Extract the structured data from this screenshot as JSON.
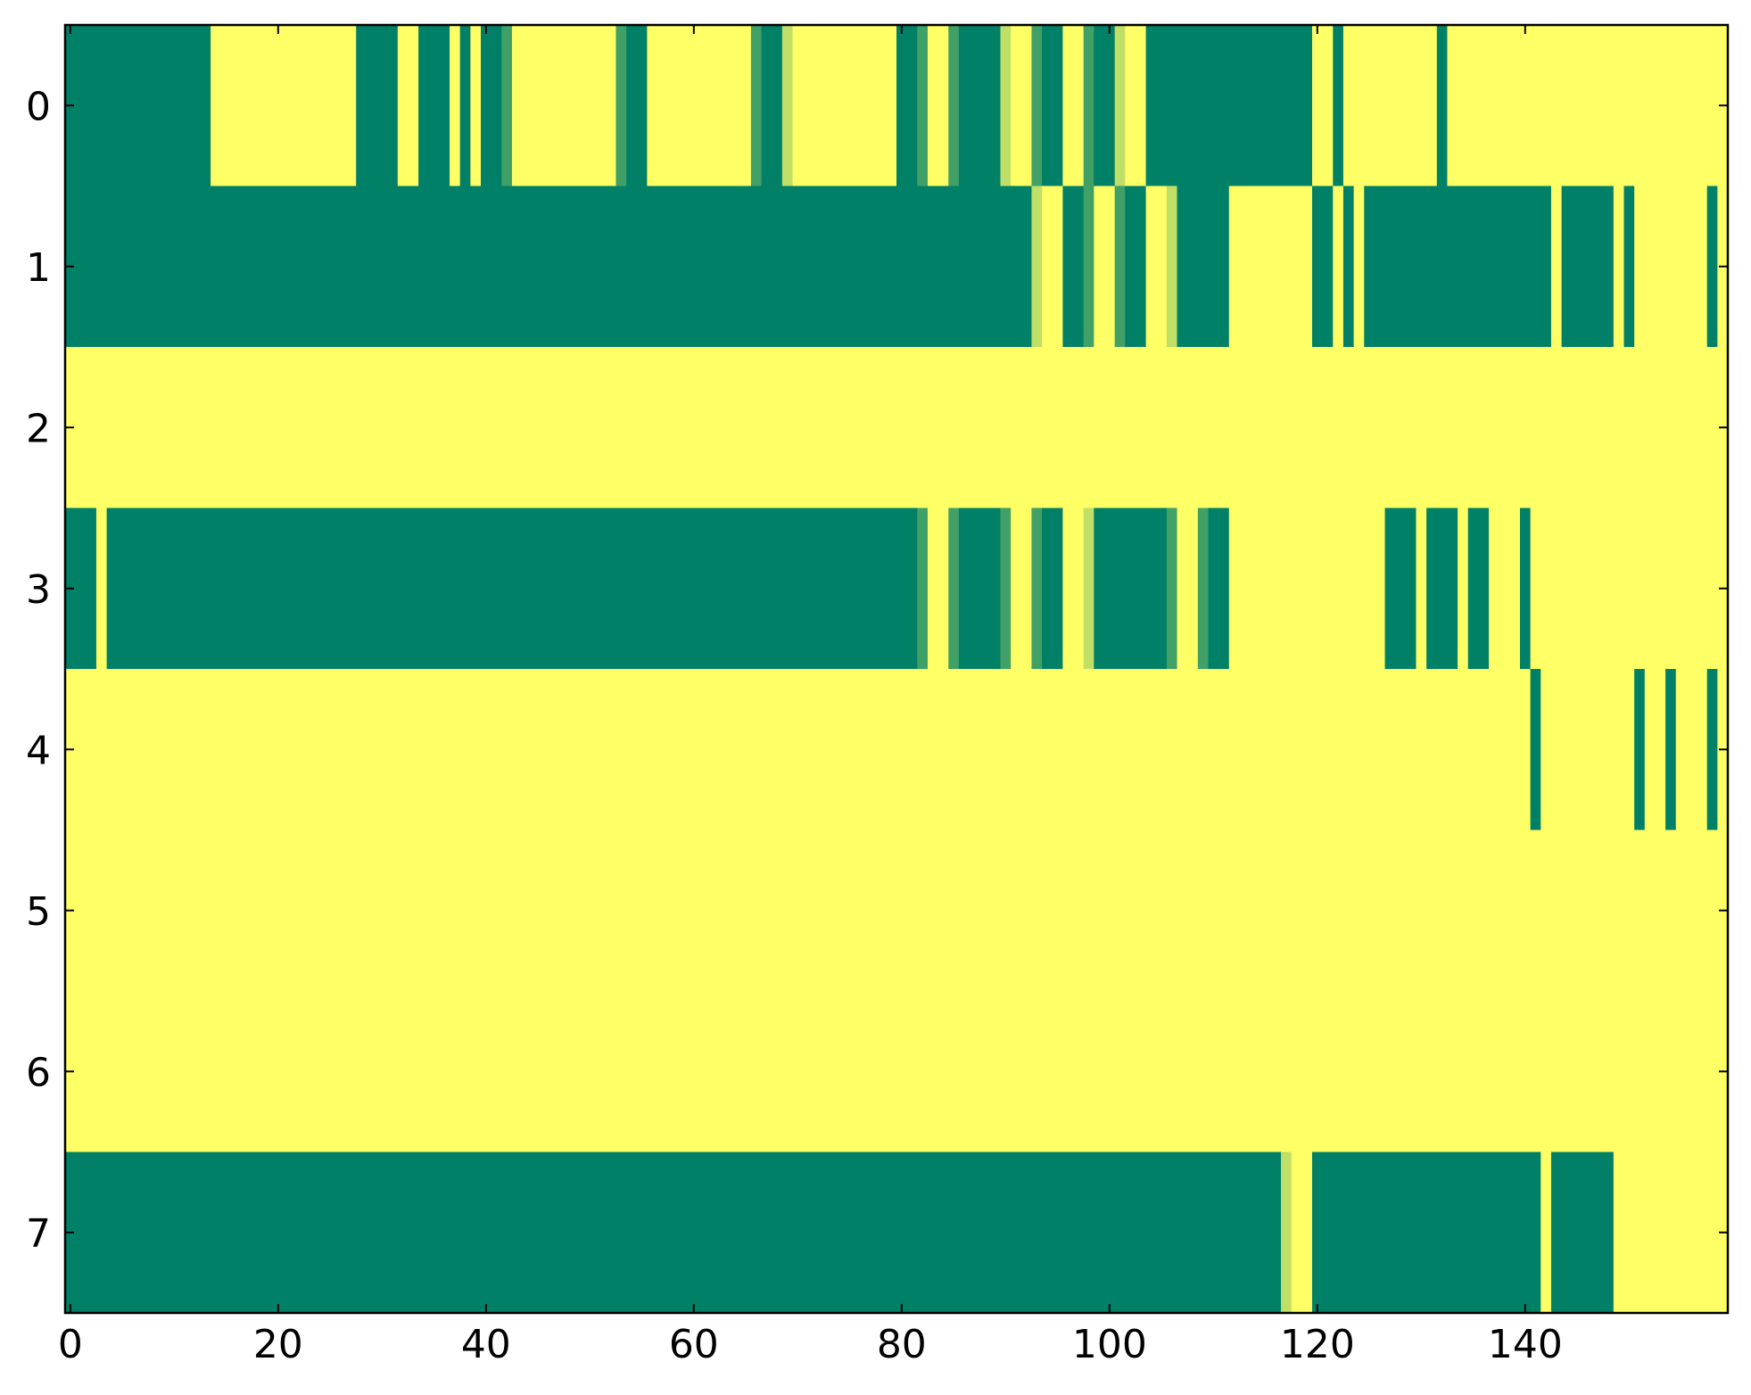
{
  "chart_data": {
    "type": "heatmap",
    "xlim": [
      -0.5,
      159.5
    ],
    "ylim": [
      7.5,
      -0.5
    ],
    "xticks": [
      0,
      20,
      40,
      60,
      80,
      100,
      120,
      140
    ],
    "yticks": [
      0,
      1,
      2,
      3,
      4,
      5,
      6,
      7
    ],
    "vlim": [
      0,
      1
    ],
    "colormap": {
      "low": "#008066",
      "high": "#ffff66"
    },
    "z": [
      [
        0,
        0,
        0,
        0,
        0,
        0,
        0,
        0,
        0,
        0,
        0,
        0,
        0,
        0,
        1,
        1,
        1,
        1,
        1,
        1,
        1,
        1,
        1,
        1,
        1,
        1,
        1,
        1,
        0,
        0,
        0,
        0,
        1,
        1,
        0,
        0,
        0,
        1,
        0,
        1,
        0,
        0,
        0.25,
        1,
        1,
        1,
        1,
        1,
        1,
        1,
        1,
        1,
        1,
        0.25,
        0,
        0,
        1,
        1,
        1,
        1,
        1,
        1,
        1,
        1,
        1,
        1,
        0.25,
        0,
        0,
        0.75,
        1,
        1,
        1,
        1,
        1,
        1,
        1,
        1,
        1,
        1,
        0,
        0,
        0.25,
        1,
        1,
        0.25,
        0,
        0,
        0,
        0,
        0.75,
        1,
        1,
        0.25,
        0,
        0,
        1,
        1,
        0.25,
        0,
        0,
        0.75,
        1,
        1,
        0,
        0,
        0,
        0,
        0,
        0,
        0,
        0,
        0,
        0,
        0,
        0,
        0,
        0,
        0,
        0,
        1,
        1,
        0,
        1,
        1,
        1,
        1,
        1,
        1,
        1,
        1,
        1,
        0,
        1,
        1,
        1,
        1,
        1,
        1,
        1,
        1,
        1,
        1,
        1,
        1,
        1,
        1,
        1,
        1,
        1,
        1,
        1,
        1,
        1,
        1,
        1,
        1,
        1,
        1,
        1
      ],
      [
        0,
        0,
        0,
        0,
        0,
        0,
        0,
        0,
        0,
        0,
        0,
        0,
        0,
        0,
        0,
        0,
        0,
        0,
        0,
        0,
        0,
        0,
        0,
        0,
        0,
        0,
        0,
        0,
        0,
        0,
        0,
        0,
        0,
        0,
        0,
        0,
        0,
        0,
        0,
        0,
        0,
        0,
        0,
        0,
        0,
        0,
        0,
        0,
        0,
        0,
        0,
        0,
        0,
        0,
        0,
        0,
        0,
        0,
        0,
        0,
        0,
        0,
        0,
        0,
        0,
        0,
        0,
        0,
        0,
        0,
        0,
        0,
        0,
        0,
        0,
        0,
        0,
        0,
        0,
        0,
        0,
        0,
        0,
        0,
        0,
        0,
        0,
        0,
        0,
        0,
        0,
        0,
        0,
        0.75,
        1,
        1,
        0,
        0,
        0.25,
        1,
        1,
        0.25,
        0,
        0,
        1,
        1,
        0.75,
        0,
        0,
        0,
        0,
        0,
        1,
        1,
        1,
        1,
        1,
        1,
        1,
        1,
        0,
        0,
        1,
        0,
        1,
        0,
        0,
        0,
        0,
        0,
        0,
        0,
        0,
        0,
        0,
        0,
        0,
        0,
        0,
        0,
        0,
        0,
        0,
        1,
        0,
        0,
        0,
        0,
        0,
        1,
        0,
        1,
        1,
        1,
        1,
        1,
        1,
        1,
        0,
        1
      ],
      [
        1,
        1,
        1,
        1,
        1,
        1,
        1,
        1,
        1,
        1,
        1,
        1,
        1,
        1,
        1,
        1,
        1,
        1,
        1,
        1,
        1,
        1,
        1,
        1,
        1,
        1,
        1,
        1,
        1,
        1,
        1,
        1,
        1,
        1,
        1,
        1,
        1,
        1,
        1,
        1,
        1,
        1,
        1,
        1,
        1,
        1,
        1,
        1,
        1,
        1,
        1,
        1,
        1,
        1,
        1,
        1,
        1,
        1,
        1,
        1,
        1,
        1,
        1,
        1,
        1,
        1,
        1,
        1,
        1,
        1,
        1,
        1,
        1,
        1,
        1,
        1,
        1,
        1,
        1,
        1,
        1,
        1,
        1,
        1,
        1,
        1,
        1,
        1,
        1,
        1,
        1,
        1,
        1,
        1,
        1,
        1,
        1,
        1,
        1,
        1,
        1,
        1,
        1,
        1,
        1,
        1,
        1,
        1,
        1,
        1,
        1,
        1,
        1,
        1,
        1,
        1,
        1,
        1,
        1,
        1,
        1,
        1,
        1,
        1,
        1,
        1,
        1,
        1,
        1,
        1,
        1,
        1,
        1,
        1,
        1,
        1,
        1,
        1,
        1,
        1,
        1,
        1,
        1,
        1,
        1,
        1,
        1,
        1,
        1,
        1,
        1,
        1,
        1,
        1,
        1,
        1,
        1,
        1,
        1,
        1
      ],
      [
        0,
        0,
        0,
        1,
        0,
        0,
        0,
        0,
        0,
        0,
        0,
        0,
        0,
        0,
        0,
        0,
        0,
        0,
        0,
        0,
        0,
        0,
        0,
        0,
        0,
        0,
        0,
        0,
        0,
        0,
        0,
        0,
        0,
        0,
        0,
        0,
        0,
        0,
        0,
        0,
        0,
        0,
        0,
        0,
        0,
        0,
        0,
        0,
        0,
        0,
        0,
        0,
        0,
        0,
        0,
        0,
        0,
        0,
        0,
        0,
        0,
        0,
        0,
        0,
        0,
        0,
        0,
        0,
        0,
        0,
        0,
        0,
        0,
        0,
        0,
        0,
        0,
        0,
        0,
        0,
        0,
        0,
        0.25,
        1,
        1,
        0.25,
        0,
        0,
        0,
        0,
        0.25,
        1,
        1,
        0.25,
        0,
        0,
        1,
        1,
        0.75,
        0,
        0,
        0,
        0,
        0,
        0,
        0,
        0.25,
        1,
        1,
        0.25,
        0,
        0,
        1,
        1,
        1,
        1,
        1,
        1,
        1,
        1,
        1,
        1,
        1,
        1,
        1,
        1,
        1,
        0,
        0,
        0,
        1,
        0,
        0,
        0,
        1,
        0,
        0,
        1,
        1,
        1,
        0,
        1,
        1,
        1,
        1,
        1,
        1,
        1,
        1,
        1,
        1,
        1,
        1,
        1,
        1,
        1,
        1,
        1,
        1,
        1
      ],
      [
        1,
        1,
        1,
        1,
        1,
        1,
        1,
        1,
        1,
        1,
        1,
        1,
        1,
        1,
        1,
        1,
        1,
        1,
        1,
        1,
        1,
        1,
        1,
        1,
        1,
        1,
        1,
        1,
        1,
        1,
        1,
        1,
        1,
        1,
        1,
        1,
        1,
        1,
        1,
        1,
        1,
        1,
        1,
        1,
        1,
        1,
        1,
        1,
        1,
        1,
        1,
        1,
        1,
        1,
        1,
        1,
        1,
        1,
        1,
        1,
        1,
        1,
        1,
        1,
        1,
        1,
        1,
        1,
        1,
        1,
        1,
        1,
        1,
        1,
        1,
        1,
        1,
        1,
        1,
        1,
        1,
        1,
        1,
        1,
        1,
        1,
        1,
        1,
        1,
        1,
        1,
        1,
        1,
        1,
        1,
        1,
        1,
        1,
        1,
        1,
        1,
        1,
        1,
        1,
        1,
        1,
        1,
        1,
        1,
        1,
        1,
        1,
        1,
        1,
        1,
        1,
        1,
        1,
        1,
        1,
        1,
        1,
        1,
        1,
        1,
        1,
        1,
        1,
        1,
        1,
        1,
        1,
        1,
        1,
        1,
        1,
        1,
        1,
        1,
        1,
        1,
        0,
        1,
        1,
        1,
        1,
        1,
        1,
        1,
        1,
        1,
        0,
        1,
        1,
        0,
        1,
        1,
        1,
        0,
        1
      ],
      [
        1,
        1,
        1,
        1,
        1,
        1,
        1,
        1,
        1,
        1,
        1,
        1,
        1,
        1,
        1,
        1,
        1,
        1,
        1,
        1,
        1,
        1,
        1,
        1,
        1,
        1,
        1,
        1,
        1,
        1,
        1,
        1,
        1,
        1,
        1,
        1,
        1,
        1,
        1,
        1,
        1,
        1,
        1,
        1,
        1,
        1,
        1,
        1,
        1,
        1,
        1,
        1,
        1,
        1,
        1,
        1,
        1,
        1,
        1,
        1,
        1,
        1,
        1,
        1,
        1,
        1,
        1,
        1,
        1,
        1,
        1,
        1,
        1,
        1,
        1,
        1,
        1,
        1,
        1,
        1,
        1,
        1,
        1,
        1,
        1,
        1,
        1,
        1,
        1,
        1,
        1,
        1,
        1,
        1,
        1,
        1,
        1,
        1,
        1,
        1,
        1,
        1,
        1,
        1,
        1,
        1,
        1,
        1,
        1,
        1,
        1,
        1,
        1,
        1,
        1,
        1,
        1,
        1,
        1,
        1,
        1,
        1,
        1,
        1,
        1,
        1,
        1,
        1,
        1,
        1,
        1,
        1,
        1,
        1,
        1,
        1,
        1,
        1,
        1,
        1,
        1,
        1,
        1,
        1,
        1,
        1,
        1,
        1,
        1,
        1,
        1,
        1,
        1,
        1,
        1,
        1,
        1,
        1,
        1,
        1
      ],
      [
        1,
        1,
        1,
        1,
        1,
        1,
        1,
        1,
        1,
        1,
        1,
        1,
        1,
        1,
        1,
        1,
        1,
        1,
        1,
        1,
        1,
        1,
        1,
        1,
        1,
        1,
        1,
        1,
        1,
        1,
        1,
        1,
        1,
        1,
        1,
        1,
        1,
        1,
        1,
        1,
        1,
        1,
        1,
        1,
        1,
        1,
        1,
        1,
        1,
        1,
        1,
        1,
        1,
        1,
        1,
        1,
        1,
        1,
        1,
        1,
        1,
        1,
        1,
        1,
        1,
        1,
        1,
        1,
        1,
        1,
        1,
        1,
        1,
        1,
        1,
        1,
        1,
        1,
        1,
        1,
        1,
        1,
        1,
        1,
        1,
        1,
        1,
        1,
        1,
        1,
        1,
        1,
        1,
        1,
        1,
        1,
        1,
        1,
        1,
        1,
        1,
        1,
        1,
        1,
        1,
        1,
        1,
        1,
        1,
        1,
        1,
        1,
        1,
        1,
        1,
        1,
        1,
        1,
        1,
        1,
        1,
        1,
        1,
        1,
        1,
        1,
        1,
        1,
        1,
        1,
        1,
        1,
        1,
        1,
        1,
        1,
        1,
        1,
        1,
        1,
        1,
        1,
        1,
        1,
        1,
        1,
        1,
        1,
        1,
        1,
        1,
        1,
        1,
        1,
        1,
        1,
        1,
        1,
        1,
        1
      ],
      [
        0,
        0,
        0,
        0,
        0,
        0,
        0,
        0,
        0,
        0,
        0,
        0,
        0,
        0,
        0,
        0,
        0,
        0,
        0,
        0,
        0,
        0,
        0,
        0,
        0,
        0,
        0,
        0,
        0,
        0,
        0,
        0,
        0,
        0,
        0,
        0,
        0,
        0,
        0,
        0,
        0,
        0,
        0,
        0,
        0,
        0,
        0,
        0,
        0,
        0,
        0,
        0,
        0,
        0,
        0,
        0,
        0,
        0,
        0,
        0,
        0,
        0,
        0,
        0,
        0,
        0,
        0,
        0,
        0,
        0,
        0,
        0,
        0,
        0,
        0,
        0,
        0,
        0,
        0,
        0,
        0,
        0,
        0,
        0,
        0,
        0,
        0,
        0,
        0,
        0,
        0,
        0,
        0,
        0,
        0,
        0,
        0,
        0,
        0,
        0,
        0,
        0,
        0,
        0,
        0,
        0,
        0,
        0,
        0,
        0,
        0,
        0,
        0,
        0,
        0,
        0,
        0,
        0.75,
        1,
        1,
        0,
        0,
        0,
        0,
        0,
        0,
        0,
        0,
        0,
        0,
        0,
        0,
        0,
        0,
        0,
        0,
        0,
        0,
        0,
        0,
        0,
        0,
        1,
        0,
        0,
        0,
        0,
        0,
        0,
        1,
        1,
        1,
        1,
        1,
        1,
        1,
        1,
        1,
        1,
        1
      ]
    ]
  }
}
